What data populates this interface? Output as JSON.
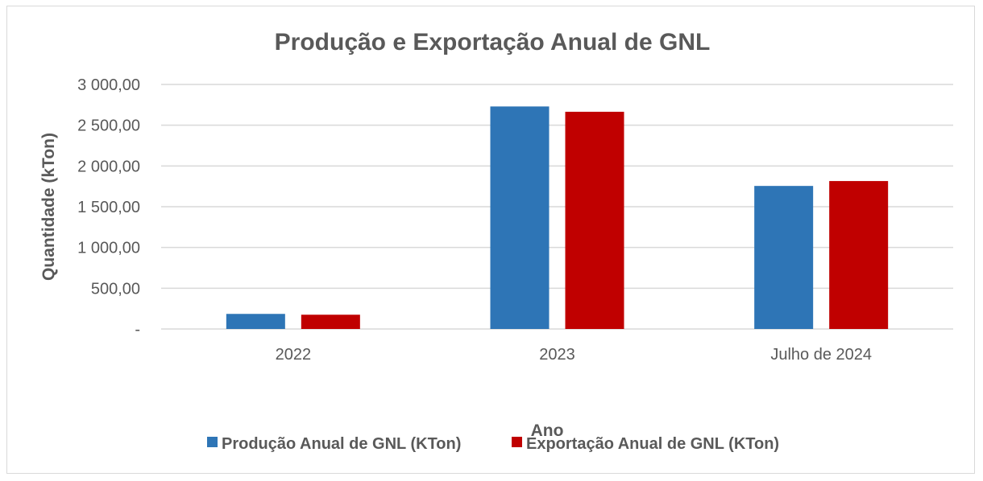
{
  "chart_data": {
    "type": "bar",
    "title": "Produção e Exportação Anual  de GNL",
    "xlabel": "Ano",
    "ylabel": "Quantidade  (kTon)",
    "categories": [
      "2022",
      "2023",
      "Julho de 2024"
    ],
    "series": [
      {
        "name": "Produção Anual de GNL (KTon)",
        "color": "#2e75b6",
        "values": [
          185,
          2730,
          1755
        ]
      },
      {
        "name": "Exportação Anual de GNL (KTon)",
        "color": "#c00000",
        "values": [
          175,
          2665,
          1815
        ]
      }
    ],
    "ylim": [
      0,
      3000
    ],
    "yticks": [
      0,
      500,
      1000,
      1500,
      2000,
      2500,
      3000
    ],
    "ytick_labels": [
      "-",
      "500,00",
      "1 000,00",
      "1 500,00",
      "2 000,00",
      "2 500,00",
      "3 000,00"
    ],
    "grid": true,
    "legend_position": "bottom"
  }
}
